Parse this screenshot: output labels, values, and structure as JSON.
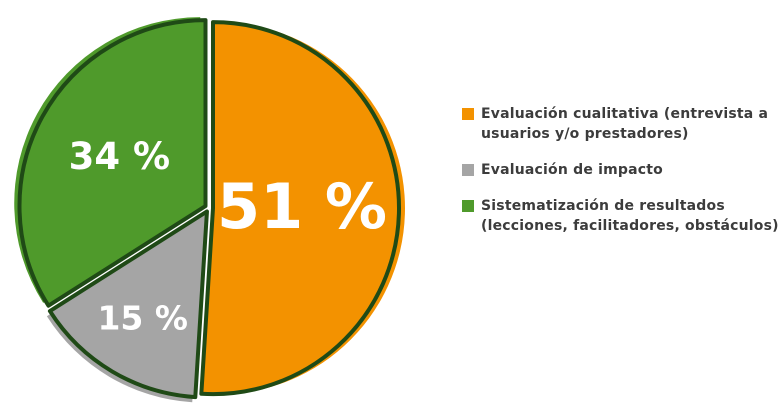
{
  "chart_data": {
    "type": "pie",
    "categories": [
      "Evaluación cualitativa (entrevista a usuarios y/o prestadores)",
      "Evaluación de impacto",
      "Sistematización de resultados (lecciones, facilitadores, obstáculos)"
    ],
    "values": [
      51,
      15,
      34
    ],
    "value_labels": [
      "51 %",
      "15 %",
      "34 %"
    ],
    "colors": [
      "#f39200",
      "#a5a5a5",
      "#4f9a2b"
    ],
    "outline_color": "#1f4a16",
    "legend": "right"
  }
}
